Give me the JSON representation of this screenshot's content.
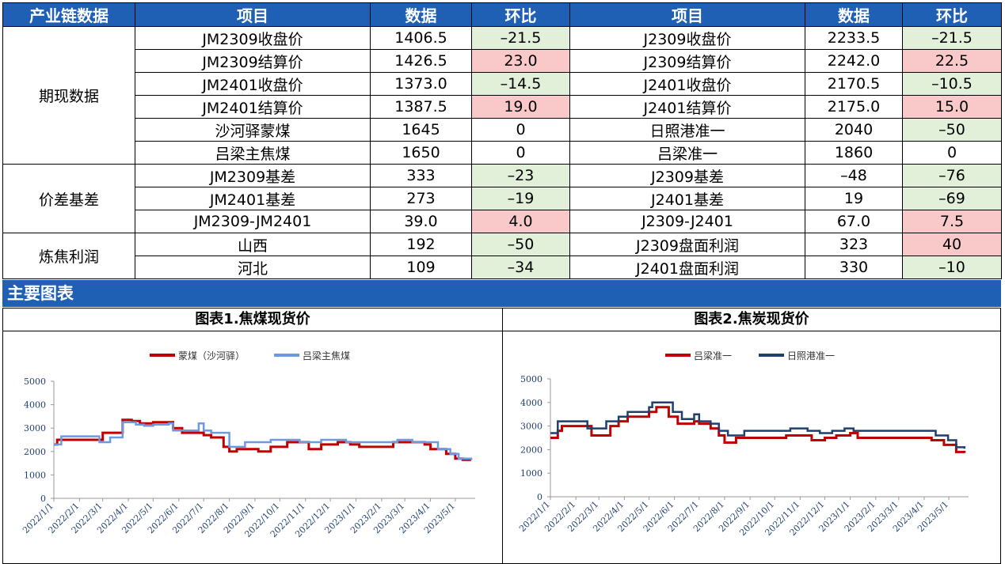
{
  "table": {
    "headers": [
      "产业链数据",
      "项目",
      "数据",
      "环比",
      "项目",
      "数据",
      "环比"
    ],
    "groups": [
      "期现数据",
      "价差基差",
      "炼焦利润"
    ],
    "rows": [
      {
        "l_item": "JM2309收盘价",
        "l_val": "1406.5",
        "l_chg": "-21.5",
        "l_cls": "neg",
        "r_item": "J2309收盘价",
        "r_val": "2233.5",
        "r_chg": "-21.5",
        "r_cls": "neg"
      },
      {
        "l_item": "JM2309结算价",
        "l_val": "1426.5",
        "l_chg": "23.0",
        "l_cls": "pos",
        "r_item": "J2309结算价",
        "r_val": "2242.0",
        "r_chg": "22.5",
        "r_cls": "pos"
      },
      {
        "l_item": "JM2401收盘价",
        "l_val": "1373.0",
        "l_chg": "-14.5",
        "l_cls": "neg",
        "r_item": "J2401收盘价",
        "r_val": "2170.5",
        "r_chg": "-10.5",
        "r_cls": "neg"
      },
      {
        "l_item": "JM2401结算价",
        "l_val": "1387.5",
        "l_chg": "19.0",
        "l_cls": "pos",
        "r_item": "J2401结算价",
        "r_val": "2175.0",
        "r_chg": "15.0",
        "r_cls": "pos"
      },
      {
        "l_item": "沙河驿蒙煤",
        "l_val": "1645",
        "l_chg": "0",
        "l_cls": "",
        "r_item": "日照港准一",
        "r_val": "2040",
        "r_chg": "-50",
        "r_cls": "neg"
      },
      {
        "l_item": "吕梁主焦煤",
        "l_val": "1650",
        "l_chg": "0",
        "l_cls": "",
        "r_item": "吕梁准一",
        "r_val": "1860",
        "r_chg": "0",
        "r_cls": ""
      },
      {
        "l_item": "JM2309基差",
        "l_val": "333",
        "l_chg": "-23",
        "l_cls": "neg",
        "r_item": "J2309基差",
        "r_val": "-48",
        "r_val_cls": "redtxt",
        "r_chg": "-76",
        "r_cls": "neg"
      },
      {
        "l_item": "JM2401基差",
        "l_val": "273",
        "l_chg": "-19",
        "l_cls": "neg",
        "r_item": "J2401基差",
        "r_val": "19",
        "r_chg": "-69",
        "r_cls": "neg"
      },
      {
        "l_item": "JM2309-JM2401",
        "l_val": "39.0",
        "l_chg": "4.0",
        "l_cls": "pos",
        "r_item": "J2309-J2401",
        "r_val": "67.0",
        "r_chg": "7.5",
        "r_cls": "pos"
      },
      {
        "l_item": "山西",
        "l_val": "192",
        "l_chg": "-50",
        "l_cls": "neg",
        "r_item": "J2309盘面利润",
        "r_val": "323",
        "r_chg": "40",
        "r_cls": "pos"
      },
      {
        "l_item": "河北",
        "l_val": "109",
        "l_chg": "-34",
        "l_cls": "neg",
        "r_item": "J2401盘面利润",
        "r_val": "330",
        "r_chg": "-10",
        "r_cls": "neg"
      }
    ]
  },
  "section_title": "主要图表",
  "chart_data": [
    {
      "type": "line",
      "title": "图表1.焦煤现货价",
      "xlabel": "",
      "ylabel": "",
      "ylim": [
        0,
        5000
      ],
      "yticks": [
        0,
        1000,
        2000,
        3000,
        4000,
        5000
      ],
      "x_tick_labels": [
        "2022/1/1",
        "2022/2/1",
        "2022/3/1",
        "2022/4/1",
        "2022/5/1",
        "2022/6/1",
        "2022/7/1",
        "2022/8/1",
        "2022/9/1",
        "2022/10/1",
        "2022/11/1",
        "2022/12/1",
        "2023/1/1",
        "2023/2/1",
        "2023/3/1",
        "2023/4/1",
        "2023/5/1"
      ],
      "legend": "top",
      "series": [
        {
          "name": "蒙煤（沙河驿）",
          "color": "#c00000",
          "points": [
            [
              "2022/1/1",
              2300
            ],
            [
              "2022/1/5",
              2500
            ],
            [
              "2022/1/15",
              2500
            ],
            [
              "2022/2/1",
              2500
            ],
            [
              "2022/3/1",
              2500
            ],
            [
              "2022/3/1",
              2800
            ],
            [
              "2022/3/20",
              2800
            ],
            [
              "2022/3/25",
              3350
            ],
            [
              "2022/4/5",
              3300
            ],
            [
              "2022/4/15",
              3200
            ],
            [
              "2022/4/25",
              3200
            ],
            [
              "2022/5/1",
              3250
            ],
            [
              "2022/5/20",
              3250
            ],
            [
              "2022/5/25",
              3000
            ],
            [
              "2022/6/5",
              2800
            ],
            [
              "2022/6/25",
              2800
            ],
            [
              "2022/7/1",
              2700
            ],
            [
              "2022/7/10",
              2600
            ],
            [
              "2022/7/20",
              2600
            ],
            [
              "2022/7/25",
              2200
            ],
            [
              "2022/8/1",
              2000
            ],
            [
              "2022/8/10",
              2100
            ],
            [
              "2022/9/1",
              2100
            ],
            [
              "2022/9/5",
              2000
            ],
            [
              "2022/9/20",
              2200
            ],
            [
              "2022/10/10",
              2400
            ],
            [
              "2022/10/25",
              2400
            ],
            [
              "2022/11/5",
              2100
            ],
            [
              "2022/11/20",
              2300
            ],
            [
              "2022/12/10",
              2400
            ],
            [
              "2022/12/25",
              2300
            ],
            [
              "2023/1/5",
              2200
            ],
            [
              "2023/2/5",
              2200
            ],
            [
              "2023/2/15",
              2400
            ],
            [
              "2023/3/10",
              2400
            ],
            [
              "2023/3/25",
              2300
            ],
            [
              "2023/4/1",
              2100
            ],
            [
              "2023/4/20",
              1900
            ],
            [
              "2023/5/1",
              1700
            ],
            [
              "2023/5/10",
              1650
            ],
            [
              "2023/5/20",
              1645
            ]
          ]
        },
        {
          "name": "吕梁主焦煤",
          "color": "#6b9ae0",
          "points": [
            [
              "2022/1/1",
              2300
            ],
            [
              "2022/1/10",
              2650
            ],
            [
              "2022/2/1",
              2650
            ],
            [
              "2022/2/20",
              2650
            ],
            [
              "2022/2/25",
              2400
            ],
            [
              "2022/3/10",
              2600
            ],
            [
              "2022/3/25",
              3250
            ],
            [
              "2022/4/10",
              3150
            ],
            [
              "2022/4/20",
              3100
            ],
            [
              "2022/5/1",
              3150
            ],
            [
              "2022/5/20",
              3200
            ],
            [
              "2022/5/25",
              2900
            ],
            [
              "2022/6/10",
              2900
            ],
            [
              "2022/6/20",
              2900
            ],
            [
              "2022/6/25",
              3200
            ],
            [
              "2022/7/1",
              2900
            ],
            [
              "2022/7/10",
              2800
            ],
            [
              "2022/7/25",
              2800
            ],
            [
              "2022/8/1",
              2200
            ],
            [
              "2022/8/15",
              2200
            ],
            [
              "2022/8/20",
              2400
            ],
            [
              "2022/9/1",
              2400
            ],
            [
              "2022/9/20",
              2500
            ],
            [
              "2022/10/10",
              2500
            ],
            [
              "2022/10/25",
              2400
            ],
            [
              "2022/11/10",
              2400
            ],
            [
              "2022/11/20",
              2500
            ],
            [
              "2022/12/5",
              2500
            ],
            [
              "2022/12/20",
              2400
            ],
            [
              "2023/1/10",
              2400
            ],
            [
              "2023/2/15",
              2400
            ],
            [
              "2023/2/20",
              2500
            ],
            [
              "2023/3/10",
              2400
            ],
            [
              "2023/4/1",
              2400
            ],
            [
              "2023/4/10",
              2100
            ],
            [
              "2023/4/25",
              1900
            ],
            [
              "2023/5/5",
              1700
            ],
            [
              "2023/5/20",
              1650
            ]
          ]
        }
      ]
    },
    {
      "type": "line",
      "title": "图表2.焦炭现货价",
      "xlabel": "",
      "ylabel": "",
      "ylim": [
        0,
        5000
      ],
      "yticks": [
        0,
        1000,
        2000,
        3000,
        4000,
        5000
      ],
      "x_tick_labels": [
        "2022/1/1",
        "2022/2/1",
        "2022/3/1",
        "2022/4/1",
        "2022/5/1",
        "2022/6/1",
        "2022/7/1",
        "2022/8/1",
        "2022/9/1",
        "2022/10/1",
        "2022/11/1",
        "2022/12/1",
        "2023/1/1",
        "2023/2/1",
        "2023/3/1",
        "2023/4/1",
        "2023/5/1"
      ],
      "legend": "top",
      "series": [
        {
          "name": "吕梁准一",
          "color": "#c00000",
          "points": [
            [
              "2022/1/1",
              2500
            ],
            [
              "2022/1/10",
              2800
            ],
            [
              "2022/1/15",
              3000
            ],
            [
              "2022/2/10",
              3000
            ],
            [
              "2022/2/20",
              2600
            ],
            [
              "2022/3/5",
              2600
            ],
            [
              "2022/3/15",
              3000
            ],
            [
              "2022/3/25",
              3200
            ],
            [
              "2022/4/5",
              3400
            ],
            [
              "2022/4/25",
              3400
            ],
            [
              "2022/5/1",
              3600
            ],
            [
              "2022/5/10",
              3800
            ],
            [
              "2022/5/20",
              3800
            ],
            [
              "2022/5/25",
              3400
            ],
            [
              "2022/6/5",
              3100
            ],
            [
              "2022/6/15",
              3100
            ],
            [
              "2022/6/25",
              3200
            ],
            [
              "2022/7/1",
              3100
            ],
            [
              "2022/7/15",
              2900
            ],
            [
              "2022/7/25",
              2600
            ],
            [
              "2022/8/1",
              2300
            ],
            [
              "2022/8/10",
              2300
            ],
            [
              "2022/8/15",
              2500
            ],
            [
              "2022/9/10",
              2500
            ],
            [
              "2022/10/10",
              2500
            ],
            [
              "2022/10/15",
              2600
            ],
            [
              "2022/11/1",
              2600
            ],
            [
              "2022/11/15",
              2400
            ],
            [
              "2022/12/1",
              2500
            ],
            [
              "2022/12/15",
              2600
            ],
            [
              "2023/1/1",
              2700
            ],
            [
              "2023/1/10",
              2500
            ],
            [
              "2023/2/10",
              2500
            ],
            [
              "2023/3/10",
              2500
            ],
            [
              "2023/4/1",
              2500
            ],
            [
              "2023/4/10",
              2400
            ],
            [
              "2023/4/25",
              2200
            ],
            [
              "2023/5/10",
              1900
            ],
            [
              "2023/5/20",
              1860
            ]
          ]
        },
        {
          "name": "日照港准一",
          "color": "#1f3f6f",
          "points": [
            [
              "2022/1/1",
              2700
            ],
            [
              "2022/1/10",
              3200
            ],
            [
              "2022/2/5",
              3200
            ],
            [
              "2022/2/15",
              2900
            ],
            [
              "2022/3/1",
              2900
            ],
            [
              "2022/3/10",
              3200
            ],
            [
              "2022/3/25",
              3400
            ],
            [
              "2022/4/5",
              3600
            ],
            [
              "2022/4/25",
              3600
            ],
            [
              "2022/5/1",
              3800
            ],
            [
              "2022/5/5",
              4000
            ],
            [
              "2022/5/25",
              4000
            ],
            [
              "2022/5/30",
              3600
            ],
            [
              "2022/6/10",
              3300
            ],
            [
              "2022/6/20",
              3300
            ],
            [
              "2022/6/25",
              3500
            ],
            [
              "2022/7/1",
              3200
            ],
            [
              "2022/7/15",
              3100
            ],
            [
              "2022/7/25",
              2800
            ],
            [
              "2022/8/5",
              2600
            ],
            [
              "2022/8/15",
              2600
            ],
            [
              "2022/8/25",
              2800
            ],
            [
              "2022/9/15",
              2800
            ],
            [
              "2022/10/10",
              2800
            ],
            [
              "2022/10/20",
              2900
            ],
            [
              "2022/11/10",
              2800
            ],
            [
              "2022/11/25",
              2700
            ],
            [
              "2022/12/10",
              2800
            ],
            [
              "2022/12/25",
              2900
            ],
            [
              "2023/1/5",
              2800
            ],
            [
              "2023/2/10",
              2800
            ],
            [
              "2023/3/10",
              2800
            ],
            [
              "2023/4/1",
              2800
            ],
            [
              "2023/4/15",
              2600
            ],
            [
              "2023/4/30",
              2400
            ],
            [
              "2023/5/10",
              2100
            ],
            [
              "2023/5/20",
              2040
            ]
          ]
        }
      ]
    }
  ]
}
